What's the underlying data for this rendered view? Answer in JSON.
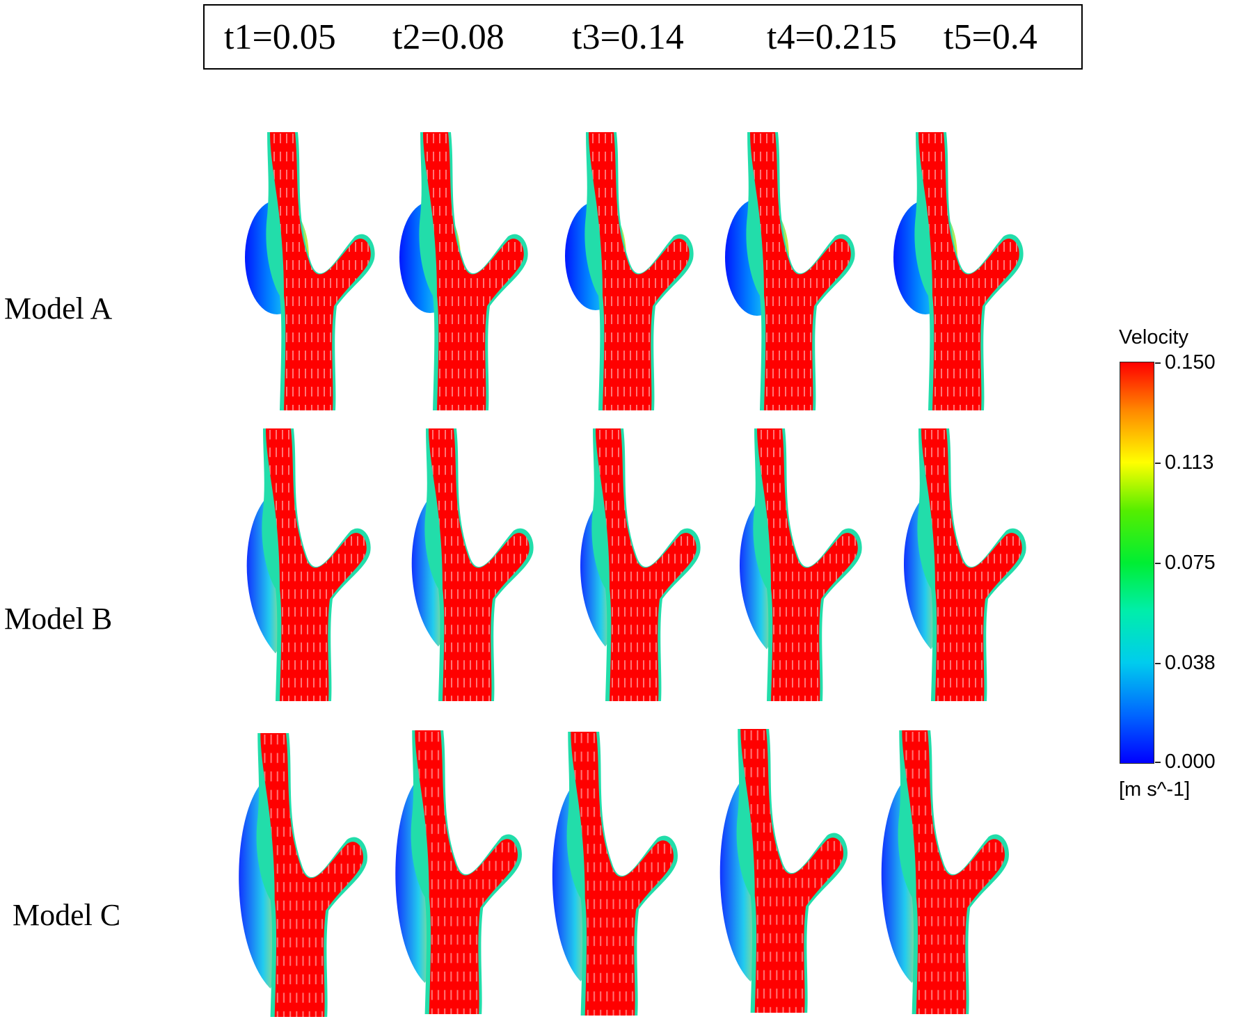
{
  "time_labels": [
    "t1=0.05",
    "t2=0.08",
    "t3=0.14",
    "t4=0.215",
    "t5=0.4"
  ],
  "row_labels": [
    "Model A",
    "Model B",
    "Model C"
  ],
  "legend": {
    "title": "Velocity",
    "units": "[m s^-1]",
    "ticks": [
      "0.150",
      "0.113",
      "0.075",
      "0.038",
      "0.000"
    ],
    "colors_top_to_bottom": [
      "#ff0000",
      "#ffff00",
      "#00ee33",
      "#00ccee",
      "#0000ff"
    ]
  }
}
